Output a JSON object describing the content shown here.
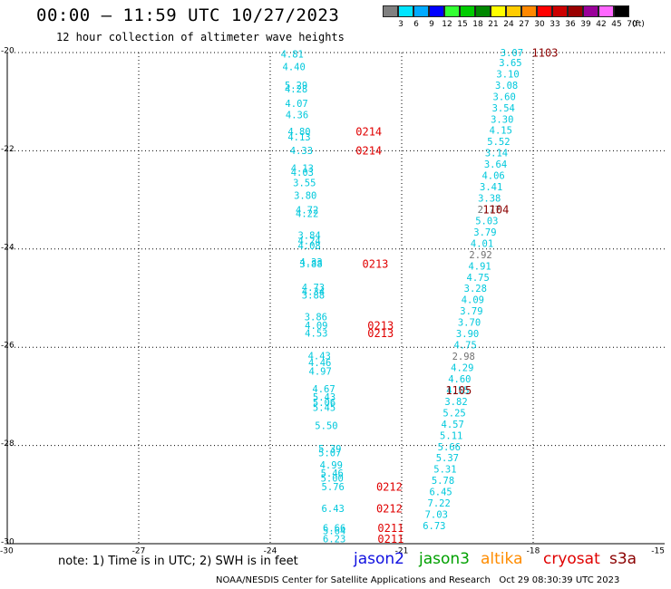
{
  "header": {
    "title": "00:00 – 11:59 UTC 10/27/2023",
    "subtitle": "12 hour collection of altimeter wave heights"
  },
  "colorbar": {
    "unit": "(ft)",
    "bins": [
      {
        "label": "3",
        "color": "#808080"
      },
      {
        "label": "6",
        "color": "#00e5ff"
      },
      {
        "label": "9",
        "color": "#00aaff"
      },
      {
        "label": "12",
        "color": "#0000ff"
      },
      {
        "label": "15",
        "color": "#33ff33"
      },
      {
        "label": "18",
        "color": "#00cc00"
      },
      {
        "label": "21",
        "color": "#008800"
      },
      {
        "label": "24",
        "color": "#ffff00"
      },
      {
        "label": "27",
        "color": "#ffcc00"
      },
      {
        "label": "30",
        "color": "#ff8800"
      },
      {
        "label": "33",
        "color": "#ff0000"
      },
      {
        "label": "36",
        "color": "#cc0000"
      },
      {
        "label": "39",
        "color": "#990000"
      },
      {
        "label": "42",
        "color": "#990099"
      },
      {
        "label": "45",
        "color": "#ff66ff"
      },
      {
        "label": "70",
        "color": "#000000"
      }
    ]
  },
  "chart_data": {
    "type": "scatter",
    "xlim": [
      -30,
      -15
    ],
    "ylim": [
      -30,
      -20
    ],
    "x_ticks": [
      "-30",
      "-27",
      "-24",
      "-21",
      "-18",
      "-15"
    ],
    "y_ticks": [
      "-20",
      "-22",
      "-24",
      "-26",
      "-28",
      "-30"
    ],
    "grid": true,
    "colors": {
      "cyan": "#00c8dc",
      "gray": "#707070",
      "red": "#e00000",
      "darkred": "#8b0000"
    },
    "west_track": [
      {
        "x": -23.76,
        "y": -20.05,
        "v": "4.81",
        "c": "cyan"
      },
      {
        "x": -23.72,
        "y": -20.3,
        "v": "4.40",
        "c": "cyan"
      },
      {
        "x": -23.67,
        "y": -20.68,
        "v": "5.29",
        "c": "cyan"
      },
      {
        "x": -23.67,
        "y": -20.76,
        "v": "4.28",
        "c": "cyan"
      },
      {
        "x": -23.66,
        "y": -21.05,
        "v": "4.07",
        "c": "cyan"
      },
      {
        "x": -23.65,
        "y": -21.28,
        "v": "4.36",
        "c": "cyan"
      },
      {
        "x": -23.6,
        "y": -21.62,
        "v": "4.80",
        "c": "cyan"
      },
      {
        "x": -23.6,
        "y": -21.73,
        "v": "4.13",
        "c": "cyan"
      },
      {
        "x": -23.55,
        "y": -22.01,
        "v": "4.33",
        "c": "cyan"
      },
      {
        "x": -23.53,
        "y": -22.37,
        "v": "4.13",
        "c": "cyan"
      },
      {
        "x": -23.53,
        "y": -22.45,
        "v": "4.03",
        "c": "cyan"
      },
      {
        "x": -23.48,
        "y": -22.67,
        "v": "3.55",
        "c": "cyan"
      },
      {
        "x": -23.46,
        "y": -22.92,
        "v": "3.80",
        "c": "cyan"
      },
      {
        "x": -23.42,
        "y": -23.22,
        "v": "4.72",
        "c": "cyan"
      },
      {
        "x": -23.42,
        "y": -23.29,
        "v": "4.22",
        "c": "cyan"
      },
      {
        "x": -23.37,
        "y": -23.74,
        "v": "3.84",
        "c": "cyan"
      },
      {
        "x": -23.37,
        "y": -23.85,
        "v": "4.24",
        "c": "cyan"
      },
      {
        "x": -23.37,
        "y": -23.95,
        "v": "4.08",
        "c": "cyan"
      },
      {
        "x": -23.33,
        "y": -24.28,
        "v": "4.33",
        "c": "cyan"
      },
      {
        "x": -23.33,
        "y": -24.32,
        "v": "3.88",
        "c": "cyan"
      },
      {
        "x": -23.28,
        "y": -24.8,
        "v": "4.73",
        "c": "cyan"
      },
      {
        "x": -23.28,
        "y": -24.88,
        "v": "4.34",
        "c": "cyan"
      },
      {
        "x": -23.28,
        "y": -24.95,
        "v": "3.88",
        "c": "cyan"
      },
      {
        "x": -23.22,
        "y": -25.4,
        "v": "3.86",
        "c": "cyan"
      },
      {
        "x": -23.21,
        "y": -25.57,
        "v": "4.09",
        "c": "cyan"
      },
      {
        "x": -23.21,
        "y": -25.73,
        "v": "4.53",
        "c": "cyan"
      },
      {
        "x": -23.14,
        "y": -26.19,
        "v": "4.43",
        "c": "cyan"
      },
      {
        "x": -23.13,
        "y": -26.33,
        "v": "4.46",
        "c": "cyan"
      },
      {
        "x": -23.12,
        "y": -26.5,
        "v": "4.97",
        "c": "cyan"
      },
      {
        "x": -23.04,
        "y": -26.86,
        "v": "4.67",
        "c": "cyan"
      },
      {
        "x": -23.03,
        "y": -27.03,
        "v": "5.43",
        "c": "cyan"
      },
      {
        "x": -23.03,
        "y": -27.14,
        "v": "5.06",
        "c": "cyan"
      },
      {
        "x": -23.03,
        "y": -27.24,
        "v": "5.45",
        "c": "cyan"
      },
      {
        "x": -22.98,
        "y": -27.61,
        "v": "5.50",
        "c": "cyan"
      },
      {
        "x": -22.9,
        "y": -28.08,
        "v": "5.39",
        "c": "cyan"
      },
      {
        "x": -22.9,
        "y": -28.16,
        "v": "5.07",
        "c": "cyan"
      },
      {
        "x": -22.87,
        "y": -28.41,
        "v": "4.99",
        "c": "cyan"
      },
      {
        "x": -22.85,
        "y": -28.58,
        "v": "5.46",
        "c": "cyan"
      },
      {
        "x": -22.85,
        "y": -28.68,
        "v": "5.00",
        "c": "cyan"
      },
      {
        "x": -22.83,
        "y": -28.86,
        "v": "5.76",
        "c": "cyan"
      },
      {
        "x": -22.83,
        "y": -29.3,
        "v": "6.43",
        "c": "cyan"
      },
      {
        "x": -22.8,
        "y": -29.7,
        "v": "6.66",
        "c": "cyan"
      },
      {
        "x": -22.8,
        "y": -29.75,
        "v": "5.64",
        "c": "cyan"
      },
      {
        "x": -22.8,
        "y": -29.92,
        "v": "6.23",
        "c": "cyan"
      }
    ],
    "east_track": [
      {
        "x": -18.75,
        "y": -20.02,
        "v": "3.07",
        "c": "cyan"
      },
      {
        "x": -18.78,
        "y": -20.22,
        "v": "3.65",
        "c": "cyan"
      },
      {
        "x": -18.84,
        "y": -20.45,
        "v": "3.10",
        "c": "cyan"
      },
      {
        "x": -18.87,
        "y": -20.68,
        "v": "3.08",
        "c": "cyan"
      },
      {
        "x": -18.92,
        "y": -20.91,
        "v": "3.60",
        "c": "cyan"
      },
      {
        "x": -18.94,
        "y": -21.14,
        "v": "3.54",
        "c": "cyan"
      },
      {
        "x": -18.97,
        "y": -21.37,
        "v": "3.30",
        "c": "cyan"
      },
      {
        "x": -19.0,
        "y": -21.6,
        "v": "4.15",
        "c": "cyan"
      },
      {
        "x": -19.05,
        "y": -21.83,
        "v": "5.52",
        "c": "cyan"
      },
      {
        "x": -19.1,
        "y": -22.06,
        "v": "3.14",
        "c": "cyan"
      },
      {
        "x": -19.12,
        "y": -22.29,
        "v": "3.64",
        "c": "cyan"
      },
      {
        "x": -19.17,
        "y": -22.52,
        "v": "4.06",
        "c": "cyan"
      },
      {
        "x": -19.22,
        "y": -22.75,
        "v": "3.41",
        "c": "cyan"
      },
      {
        "x": -19.26,
        "y": -22.98,
        "v": "3.38",
        "c": "cyan"
      },
      {
        "x": -19.27,
        "y": -23.21,
        "v": "2.77",
        "c": "gray"
      },
      {
        "x": -19.32,
        "y": -23.44,
        "v": "5.03",
        "c": "cyan"
      },
      {
        "x": -19.36,
        "y": -23.67,
        "v": "3.79",
        "c": "cyan"
      },
      {
        "x": -19.43,
        "y": -23.9,
        "v": "4.01",
        "c": "cyan"
      },
      {
        "x": -19.46,
        "y": -24.13,
        "v": "2.92",
        "c": "gray"
      },
      {
        "x": -19.48,
        "y": -24.36,
        "v": "4.91",
        "c": "cyan"
      },
      {
        "x": -19.52,
        "y": -24.59,
        "v": "4.75",
        "c": "cyan"
      },
      {
        "x": -19.58,
        "y": -24.82,
        "v": "3.28",
        "c": "cyan"
      },
      {
        "x": -19.64,
        "y": -25.05,
        "v": "4.09",
        "c": "cyan"
      },
      {
        "x": -19.67,
        "y": -25.28,
        "v": "3.79",
        "c": "cyan"
      },
      {
        "x": -19.72,
        "y": -25.51,
        "v": "3.70",
        "c": "cyan"
      },
      {
        "x": -19.76,
        "y": -25.74,
        "v": "3.90",
        "c": "cyan"
      },
      {
        "x": -19.81,
        "y": -25.97,
        "v": "4.75",
        "c": "cyan"
      },
      {
        "x": -19.85,
        "y": -26.2,
        "v": "2.98",
        "c": "gray"
      },
      {
        "x": -19.88,
        "y": -26.43,
        "v": "4.29",
        "c": "cyan"
      },
      {
        "x": -19.94,
        "y": -26.66,
        "v": "4.60",
        "c": "cyan"
      },
      {
        "x": -19.98,
        "y": -26.89,
        "v": "4.55",
        "c": "cyan"
      },
      {
        "x": -20.02,
        "y": -27.12,
        "v": "3.82",
        "c": "cyan"
      },
      {
        "x": -20.06,
        "y": -27.35,
        "v": "5.25",
        "c": "cyan"
      },
      {
        "x": -20.1,
        "y": -27.58,
        "v": "4.57",
        "c": "cyan"
      },
      {
        "x": -20.13,
        "y": -27.81,
        "v": "5.11",
        "c": "cyan"
      },
      {
        "x": -20.18,
        "y": -28.04,
        "v": "5.66",
        "c": "cyan"
      },
      {
        "x": -20.22,
        "y": -28.27,
        "v": "5.37",
        "c": "cyan"
      },
      {
        "x": -20.27,
        "y": -28.5,
        "v": "5.31",
        "c": "cyan"
      },
      {
        "x": -20.32,
        "y": -28.73,
        "v": "5.78",
        "c": "cyan"
      },
      {
        "x": -20.37,
        "y": -28.96,
        "v": "6.45",
        "c": "cyan"
      },
      {
        "x": -20.41,
        "y": -29.19,
        "v": "7.22",
        "c": "cyan"
      },
      {
        "x": -20.47,
        "y": -29.42,
        "v": "7.03",
        "c": "cyan"
      },
      {
        "x": -20.52,
        "y": -29.65,
        "v": "6.73",
        "c": "cyan"
      }
    ],
    "time_labels": [
      {
        "x": -18.03,
        "y": -20.02,
        "t": "1103",
        "c": "darkred"
      },
      {
        "x": -19.15,
        "y": -23.21,
        "t": "1104",
        "c": "darkred"
      },
      {
        "x": -20.0,
        "y": -26.89,
        "t": "1105",
        "c": "darkred"
      },
      {
        "x": -22.05,
        "y": -21.62,
        "t": "0214",
        "c": "red"
      },
      {
        "x": -22.05,
        "y": -22.01,
        "t": "0214",
        "c": "red"
      },
      {
        "x": -21.9,
        "y": -24.32,
        "t": "0213",
        "c": "red"
      },
      {
        "x": -21.78,
        "y": -25.57,
        "t": "0213",
        "c": "red"
      },
      {
        "x": -21.78,
        "y": -25.73,
        "t": "0213",
        "c": "red"
      },
      {
        "x": -21.58,
        "y": -28.86,
        "t": "0212",
        "c": "red"
      },
      {
        "x": -21.58,
        "y": -29.3,
        "t": "0212",
        "c": "red"
      },
      {
        "x": -21.55,
        "y": -29.7,
        "t": "0211",
        "c": "red"
      },
      {
        "x": -21.55,
        "y": -29.92,
        "t": "0211",
        "c": "red"
      }
    ]
  },
  "note": "note: 1) Time is in UTC; 2) SWH is in feet",
  "legend": [
    {
      "label": "jason2",
      "color": "#1010e0"
    },
    {
      "label": "jason3",
      "color": "#00a000"
    },
    {
      "label": "altika",
      "color": "#ff8c00"
    },
    {
      "label": "cryosat",
      "color": "#e00000"
    },
    {
      "label": "s3a",
      "color": "#8b0000"
    }
  ],
  "footer": "NOAA/NESDIS Center for Satellite Applications and Research   Oct 29 08:30:39 UTC 2023"
}
